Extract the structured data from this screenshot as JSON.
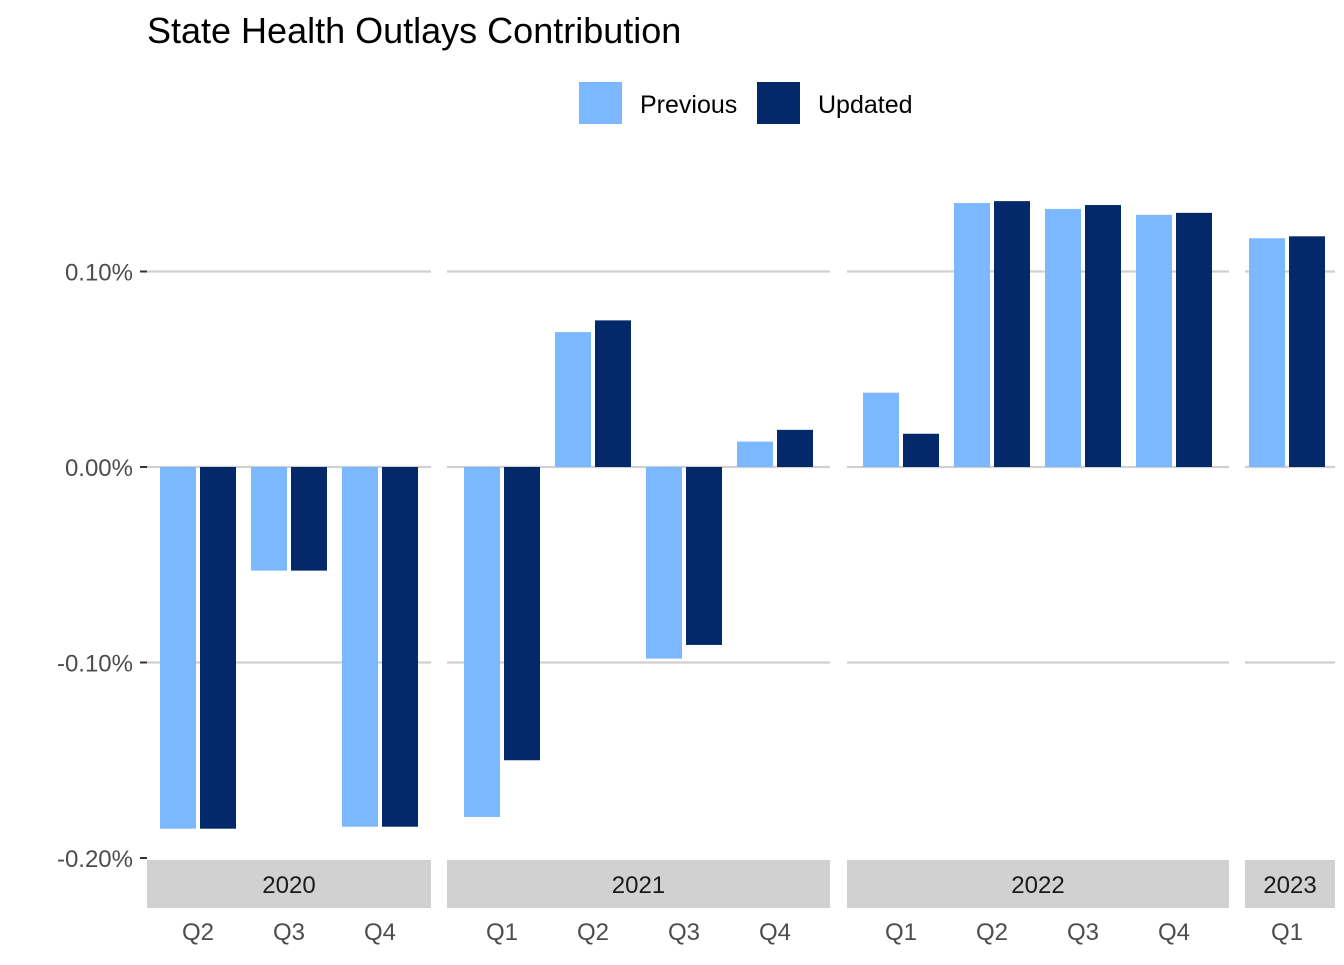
{
  "chart_data": {
    "type": "bar",
    "title": "State Health Outlays Contribution",
    "xlabel": "",
    "ylabel": "",
    "ylim": [
      -0.2,
      0.14
    ],
    "yticks": [
      -0.2,
      -0.1,
      0.0,
      0.1
    ],
    "ytick_labels": [
      "-0.20%",
      "-0.10%",
      "0.00%",
      "0.10%"
    ],
    "grid": true,
    "legend_position": "top",
    "series": [
      {
        "name": "Previous",
        "color": "#7cb8ff"
      },
      {
        "name": "Updated",
        "color": "#03296a"
      }
    ],
    "panels": [
      {
        "label": "2020",
        "quarters": [
          {
            "q": "Q2",
            "values": [
              -0.185,
              -0.185
            ]
          },
          {
            "q": "Q3",
            "values": [
              -0.053,
              -0.053
            ]
          },
          {
            "q": "Q4",
            "values": [
              -0.184,
              -0.184
            ]
          }
        ]
      },
      {
        "label": "2021",
        "quarters": [
          {
            "q": "Q1",
            "values": [
              -0.179,
              -0.15
            ]
          },
          {
            "q": "Q2",
            "values": [
              0.069,
              0.075
            ]
          },
          {
            "q": "Q3",
            "values": [
              -0.098,
              -0.091
            ]
          },
          {
            "q": "Q4",
            "values": [
              0.013,
              0.019
            ]
          }
        ]
      },
      {
        "label": "2022",
        "quarters": [
          {
            "q": "Q1",
            "values": [
              0.038,
              0.017
            ]
          },
          {
            "q": "Q2",
            "values": [
              0.135,
              0.136
            ]
          },
          {
            "q": "Q3",
            "values": [
              0.132,
              0.134
            ]
          },
          {
            "q": "Q4",
            "values": [
              0.129,
              0.13
            ]
          }
        ]
      },
      {
        "label": "2023",
        "quarters": [
          {
            "q": "Q1",
            "values": [
              0.117,
              0.118
            ]
          }
        ]
      }
    ]
  }
}
